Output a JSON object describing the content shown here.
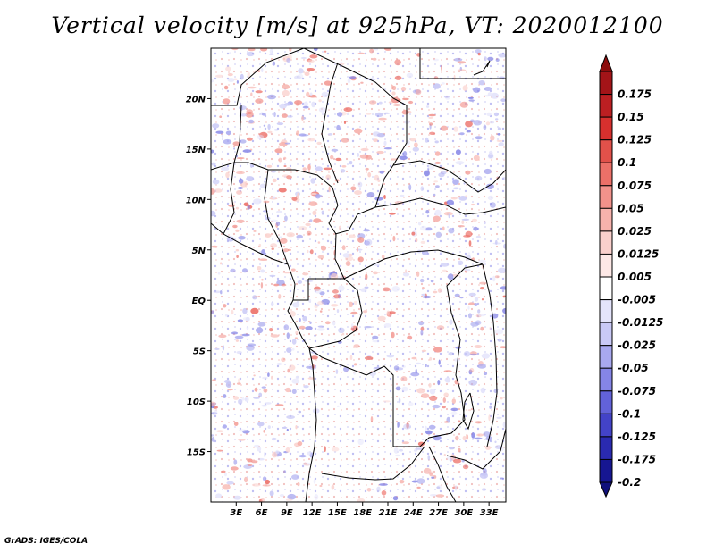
{
  "title": "Vertical velocity [m/s] at 925hPa, VT: 2020012100",
  "credit": "GrADS: IGES/COLA",
  "map": {
    "lon_range": [
      0,
      35
    ],
    "lat_range": [
      -20,
      25
    ],
    "lat_ticks": [
      {
        "value": 20,
        "label": "20N"
      },
      {
        "value": 15,
        "label": "15N"
      },
      {
        "value": 10,
        "label": "10N"
      },
      {
        "value": 5,
        "label": "5N"
      },
      {
        "value": 0,
        "label": "EQ"
      },
      {
        "value": -5,
        "label": "5S"
      },
      {
        "value": -10,
        "label": "10S"
      },
      {
        "value": -15,
        "label": "15S"
      }
    ],
    "lon_ticks": [
      {
        "value": 3,
        "label": "3E"
      },
      {
        "value": 6,
        "label": "6E"
      },
      {
        "value": 9,
        "label": "9E"
      },
      {
        "value": 12,
        "label": "12E"
      },
      {
        "value": 15,
        "label": "15E"
      },
      {
        "value": 18,
        "label": "18E"
      },
      {
        "value": 21,
        "label": "21E"
      },
      {
        "value": 24,
        "label": "24E"
      },
      {
        "value": 27,
        "label": "27E"
      },
      {
        "value": 30,
        "label": "30E"
      },
      {
        "value": 33,
        "label": "33E"
      }
    ]
  },
  "colorbar": {
    "levels": [
      {
        "label": "0.175",
        "color": "#a31418"
      },
      {
        "label": "0.15",
        "color": "#bc1f22"
      },
      {
        "label": "0.125",
        "color": "#d7302e"
      },
      {
        "label": "0.1",
        "color": "#e2514a"
      },
      {
        "label": "0.075",
        "color": "#ec7068"
      },
      {
        "label": "0.05",
        "color": "#f2928b"
      },
      {
        "label": "0.025",
        "color": "#f7b2ac"
      },
      {
        "label": "0.0125",
        "color": "#fad0cc"
      },
      {
        "label": "0.005",
        "color": "#fde8e6"
      },
      {
        "label": "-0.005",
        "color": "#ffffff"
      },
      {
        "label": "-0.0125",
        "color": "#e4e4fb"
      },
      {
        "label": "-0.025",
        "color": "#c9c9f6"
      },
      {
        "label": "-0.05",
        "color": "#a8a8ef"
      },
      {
        "label": "-0.075",
        "color": "#8585e6"
      },
      {
        "label": "-0.1",
        "color": "#6262d9"
      },
      {
        "label": "-0.125",
        "color": "#4343c8"
      },
      {
        "label": "-0.175",
        "color": "#2a2ab0"
      },
      {
        "label": "-0.2",
        "color": "#161691"
      }
    ],
    "top_color": "#8c0d0d",
    "bottom_color": "#10107a"
  }
}
